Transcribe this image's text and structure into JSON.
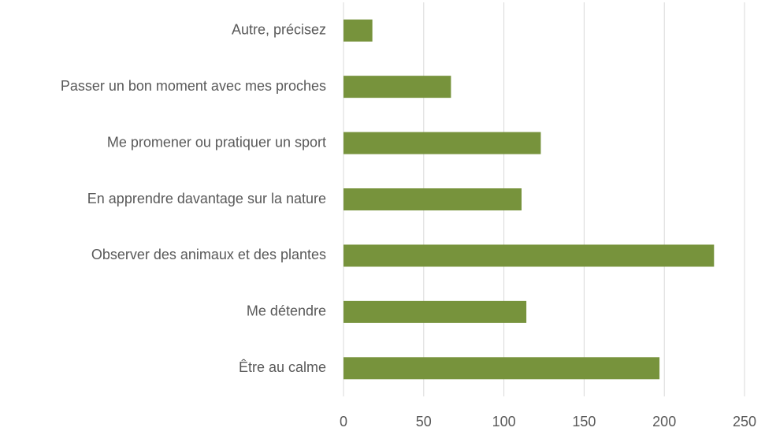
{
  "chart_data": {
    "type": "bar",
    "orientation": "horizontal",
    "categories": [
      "Autre, précisez",
      "Passer un bon moment avec mes proches",
      "Me promener ou pratiquer un sport",
      "En apprendre davantage sur la nature",
      "Observer des animaux et des plantes",
      "Me détendre",
      "Être au calme"
    ],
    "values": [
      18,
      67,
      123,
      111,
      231,
      114,
      197
    ],
    "color": "#77933c",
    "xlim": [
      0,
      250
    ],
    "xticks": [
      0,
      50,
      100,
      150,
      200,
      250
    ],
    "grid": true
  }
}
